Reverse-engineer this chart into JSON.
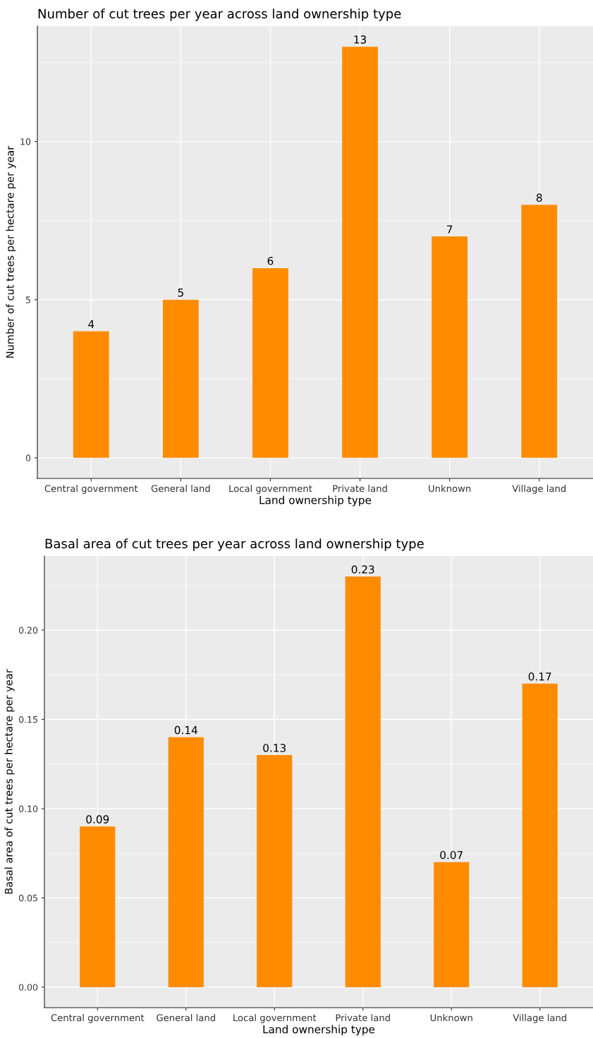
{
  "chart_data": [
    {
      "type": "bar",
      "title": "Number of cut trees per year across land ownership type",
      "xlabel": "Land ownership type",
      "ylabel": "Number of cut trees per hectare per year",
      "categories": [
        "Central government",
        "General land",
        "Local government",
        "Private land",
        "Unknown",
        "Village land"
      ],
      "values": [
        4,
        5,
        6,
        13,
        7,
        8
      ],
      "color": "#ff8c00",
      "ylim": [
        -0.65,
        13.65
      ],
      "yticks": [
        0,
        5,
        10
      ],
      "grid": true,
      "data_labels": true
    },
    {
      "type": "bar",
      "title": "Basal area of cut trees per year across land ownership type",
      "xlabel": "Land ownership type",
      "ylabel": "Basal area of cut trees per hectare per year",
      "categories": [
        "Central government",
        "General land",
        "Local government",
        "Private land",
        "Unknown",
        "Village land"
      ],
      "values": [
        0.09,
        0.14,
        0.13,
        0.23,
        0.07,
        0.17
      ],
      "color": "#ff8c00",
      "ylim": [
        -0.0115,
        0.2415
      ],
      "yticks": [
        {
          "value": 0,
          "label": "0.00"
        },
        {
          "value": 0.05,
          "label": "0.05"
        },
        {
          "value": 0.1,
          "label": "0.10"
        },
        {
          "value": 0.15,
          "label": "0.15"
        },
        {
          "value": 0.2,
          "label": "0.20"
        }
      ],
      "grid": true,
      "data_labels": true
    }
  ]
}
